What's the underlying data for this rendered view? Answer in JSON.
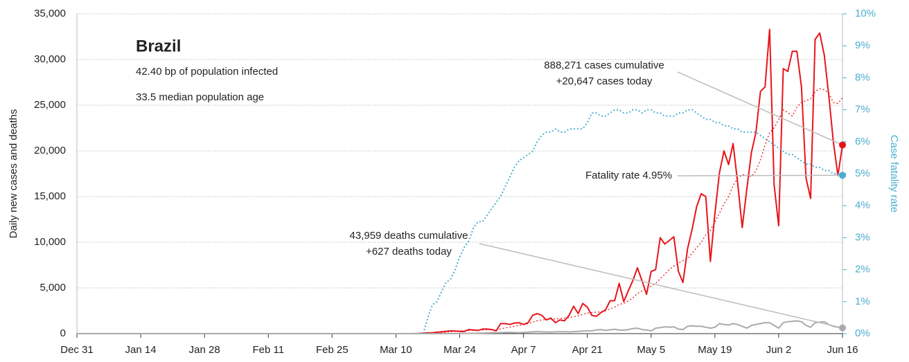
{
  "chart_data": {
    "type": "line",
    "title": "Brazil",
    "subtitle": [
      "42.40 bp of population infected",
      "33.5 median population age"
    ],
    "ylabel": "Daily new cases and deaths",
    "y2label": "Case fatality rate",
    "annotations": [
      {
        "lines": [
          "888,271 cases cumulative",
          "+20,647 cases today"
        ]
      },
      {
        "lines": [
          "43,959 deaths cumulative",
          "+627 deaths today"
        ]
      },
      {
        "lines": [
          "Fatality rate 4.95%"
        ]
      }
    ],
    "xlim": [
      0,
      168
    ],
    "xticks": [
      {
        "value": 0,
        "label": "Dec 31"
      },
      {
        "value": 14,
        "label": "Jan 14"
      },
      {
        "value": 28,
        "label": "Jan 28"
      },
      {
        "value": 42,
        "label": "Feb 11"
      },
      {
        "value": 56,
        "label": "Feb 25"
      },
      {
        "value": 70,
        "label": "Mar 10"
      },
      {
        "value": 84,
        "label": "Mar 24"
      },
      {
        "value": 98,
        "label": "Apr 7"
      },
      {
        "value": 112,
        "label": "Apr 21"
      },
      {
        "value": 126,
        "label": "May 5"
      },
      {
        "value": 140,
        "label": "May 19"
      },
      {
        "value": 154,
        "label": "Jun 2"
      },
      {
        "value": 168,
        "label": "Jun 16"
      }
    ],
    "ylim": [
      0,
      35000
    ],
    "yticks": [
      0,
      {
        "value": 5000,
        "label": "5,000"
      },
      {
        "value": 10000,
        "label": "10,000"
      },
      {
        "value": 15000,
        "label": "15,000"
      },
      {
        "value": 20000,
        "label": "20,000"
      },
      {
        "value": 25000,
        "label": "25,000"
      },
      {
        "value": 30000,
        "label": "30,000"
      },
      {
        "value": 35000,
        "label": "35,000"
      }
    ],
    "y2lim": [
      0,
      10
    ],
    "y2ticks": [
      {
        "value": 0,
        "label": "0%"
      },
      {
        "value": 1,
        "label": "1%"
      },
      {
        "value": 2,
        "label": "2%"
      },
      {
        "value": 3,
        "label": "3%"
      },
      {
        "value": 4,
        "label": "4%"
      },
      {
        "value": 5,
        "label": "5%"
      },
      {
        "value": 6,
        "label": "6%"
      },
      {
        "value": 7,
        "label": "7%"
      },
      {
        "value": 8,
        "label": "8%"
      },
      {
        "value": 9,
        "label": "9%"
      },
      {
        "value": 10,
        "label": "10%"
      }
    ],
    "grid": true,
    "x": [
      0,
      71,
      72,
      73,
      74,
      75,
      76,
      77,
      78,
      79,
      80,
      81,
      82,
      83,
      84,
      85,
      86,
      87,
      88,
      89,
      90,
      91,
      92,
      93,
      94,
      95,
      96,
      97,
      98,
      99,
      100,
      101,
      102,
      103,
      104,
      105,
      106,
      107,
      108,
      109,
      110,
      111,
      112,
      113,
      114,
      115,
      116,
      117,
      118,
      119,
      120,
      121,
      122,
      123,
      124,
      125,
      126,
      127,
      128,
      129,
      130,
      131,
      132,
      133,
      134,
      135,
      136,
      137,
      138,
      139,
      140,
      141,
      142,
      143,
      144,
      145,
      146,
      147,
      148,
      149,
      150,
      151,
      152,
      153,
      154,
      155,
      156,
      157,
      158,
      159,
      160,
      161,
      162,
      163,
      164,
      165,
      166,
      167,
      168
    ],
    "series": [
      {
        "color": "#e8131a",
        "width": 2,
        "end_marker": true,
        "values": [
          0,
          0,
          0,
          0,
          10,
          20,
          50,
          80,
          100,
          150,
          200,
          250,
          300,
          280,
          250,
          230,
          450,
          400,
          350,
          500,
          500,
          450,
          300,
          1100,
          1100,
          1000,
          1150,
          1200,
          1000,
          1200,
          2000,
          2200,
          2000,
          1500,
          1700,
          1200,
          1500,
          1400,
          2000,
          3000,
          2200,
          3300,
          2900,
          2000,
          1900,
          2300,
          2600,
          3600,
          3600,
          5500,
          3500,
          4700,
          5800,
          7200,
          5800,
          4300,
          6800,
          7000,
          10500,
          9800,
          10200,
          10600,
          6800,
          5600,
          9300,
          11400,
          13900,
          15300,
          15000,
          7900,
          13100,
          17600,
          20000,
          18500,
          20800,
          16500,
          11600,
          15800,
          19800,
          22000,
          26500,
          27000,
          33300,
          16300,
          11800,
          29000,
          28700,
          30900,
          30900,
          27000,
          17000,
          14800,
          32200,
          32900,
          30500,
          26000,
          21000,
          17300,
          20647
        ]
      },
      {
        "color": "#e8131a",
        "width": 1.3,
        "dash": true,
        "values": [
          0,
          0,
          0,
          0,
          0,
          10,
          20,
          40,
          60,
          90,
          120,
          160,
          200,
          240,
          300,
          320,
          350,
          370,
          380,
          400,
          420,
          430,
          400,
          520,
          620,
          700,
          800,
          900,
          1000,
          1100,
          1250,
          1400,
          1500,
          1550,
          1600,
          1600,
          1650,
          1700,
          1750,
          1850,
          1950,
          2100,
          2250,
          2300,
          2350,
          2400,
          2500,
          2700,
          2900,
          3200,
          3300,
          3600,
          3900,
          4400,
          4700,
          4900,
          5200,
          5500,
          6000,
          6500,
          7000,
          7400,
          7700,
          8000,
          8200,
          8800,
          9400,
          10000,
          10800,
          11300,
          12200,
          13200,
          14200,
          15000,
          16200,
          17000,
          17400,
          17300,
          17200,
          17800,
          19000,
          20600,
          22000,
          22500,
          23400,
          24500,
          24200,
          23800,
          24800,
          25300,
          25500,
          25700,
          26500,
          26800,
          26700,
          26300,
          25300,
          25200,
          25800
        ]
      },
      {
        "color": "#aaaaaa",
        "width": 2,
        "end_marker": true,
        "values": [
          0,
          0,
          0,
          0,
          0,
          0,
          0,
          0,
          0,
          0,
          0,
          0,
          0,
          0,
          20,
          25,
          30,
          40,
          45,
          60,
          70,
          80,
          90,
          100,
          120,
          130,
          110,
          100,
          120,
          150,
          200,
          220,
          200,
          180,
          170,
          200,
          210,
          220,
          190,
          220,
          250,
          280,
          300,
          300,
          400,
          450,
          350,
          420,
          470,
          400,
          380,
          450,
          550,
          600,
          450,
          400,
          300,
          600,
          650,
          750,
          700,
          750,
          500,
          450,
          800,
          850,
          800,
          800,
          700,
          600,
          700,
          1100,
          1000,
          950,
          1100,
          1000,
          800,
          600,
          900,
          1000,
          1100,
          1200,
          1200,
          900,
          600,
          1200,
          1300,
          1350,
          1400,
          1300,
          900,
          700,
          1200,
          1250,
          1300,
          1000,
          800,
          700,
          627
        ]
      },
      {
        "color": "#4aaed0",
        "width": 2,
        "dash": true,
        "axis": "y2",
        "end_marker": true,
        "values": [
          null,
          null,
          null,
          null,
          null,
          null,
          0,
          0.5,
          0.9,
          1.0,
          1.3,
          1.6,
          1.7,
          2.0,
          2.4,
          2.7,
          2.9,
          3.3,
          3.5,
          3.5,
          3.7,
          3.9,
          4.1,
          4.3,
          4.6,
          4.9,
          5.2,
          5.4,
          5.5,
          5.6,
          5.7,
          6.0,
          6.2,
          6.3,
          6.3,
          6.4,
          6.3,
          6.3,
          6.4,
          6.4,
          6.4,
          6.4,
          6.6,
          6.9,
          6.9,
          6.8,
          6.8,
          6.9,
          7.0,
          7.0,
          6.9,
          6.9,
          7.0,
          7.0,
          6.9,
          7.0,
          7.0,
          6.9,
          6.9,
          6.8,
          6.8,
          6.8,
          6.9,
          6.9,
          7.0,
          7.0,
          6.9,
          6.8,
          6.7,
          6.7,
          6.6,
          6.6,
          6.5,
          6.5,
          6.4,
          6.4,
          6.3,
          6.3,
          6.3,
          6.3,
          6.2,
          6.1,
          6.0,
          5.9,
          5.8,
          5.7,
          5.6,
          5.6,
          5.5,
          5.4,
          5.3,
          5.3,
          5.2,
          5.2,
          5.1,
          5.1,
          5.0,
          5.0,
          4.95
        ]
      }
    ]
  }
}
